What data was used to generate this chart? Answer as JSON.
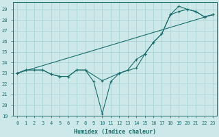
{
  "xlabel": "Humidex (Indice chaleur)",
  "bg_color": "#cce8e8",
  "line_color": "#1a6b6b",
  "grid_color": "#aad4d4",
  "xlim": [
    -0.5,
    23.5
  ],
  "ylim": [
    19,
    29.7
  ],
  "xticks": [
    0,
    1,
    2,
    3,
    4,
    5,
    6,
    7,
    8,
    9,
    10,
    11,
    12,
    13,
    14,
    15,
    16,
    17,
    18,
    19,
    20,
    21,
    22,
    23
  ],
  "yticks": [
    19,
    20,
    21,
    22,
    23,
    24,
    25,
    26,
    27,
    28,
    29
  ],
  "line1_x": [
    0,
    1,
    2,
    3,
    4,
    5,
    6,
    7,
    8,
    9,
    10,
    11,
    12,
    13,
    14,
    15,
    16,
    17,
    18,
    19,
    20,
    21,
    22,
    23
  ],
  "line1_y": [
    23,
    23.3,
    23.3,
    23.3,
    22.9,
    22.7,
    22.7,
    23.3,
    23.3,
    22.2,
    19.2,
    22.2,
    23.0,
    23.3,
    24.3,
    24.8,
    25.9,
    26.7,
    28.5,
    29.3,
    29.0,
    28.8,
    28.3,
    28.5
  ],
  "line2_x": [
    0,
    1,
    3,
    4,
    5,
    6,
    7,
    8,
    10,
    12,
    14,
    15,
    16,
    17,
    18,
    19,
    20,
    21,
    22,
    23
  ],
  "line2_y": [
    23,
    23.3,
    23.3,
    22.9,
    22.7,
    22.7,
    23.3,
    23.3,
    22.3,
    23.0,
    23.5,
    24.8,
    25.9,
    26.7,
    28.5,
    28.8,
    29.0,
    28.8,
    28.3,
    28.5
  ],
  "line3_x": [
    0,
    23
  ],
  "line3_y": [
    23,
    28.5
  ]
}
